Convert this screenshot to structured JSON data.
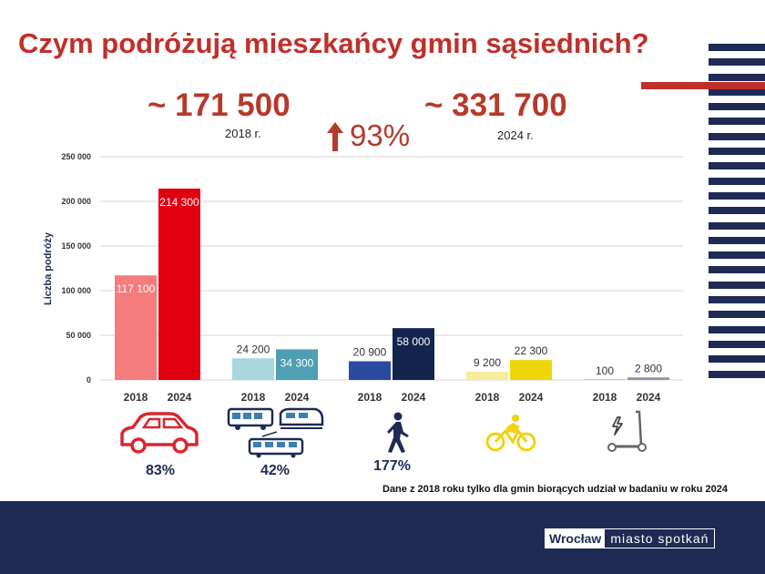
{
  "title": "Czym podróżują mieszkańcy gmin sąsiednich?",
  "totals": {
    "value_2018": "~ 171 500",
    "label_2018": "2018 r.",
    "value_2024": "~ 331 700",
    "label_2024": "2024 r.",
    "growth": "93%"
  },
  "chart_data": {
    "type": "bar",
    "ylabel": "Liczba podróży",
    "ylim": [
      0,
      250000
    ],
    "yticks": [
      "0",
      "50 000",
      "100 000",
      "150 000",
      "200 000",
      "250 000"
    ],
    "ytick_values": [
      0,
      50000,
      100000,
      150000,
      200000,
      250000
    ],
    "grid": true,
    "categories": [
      "2018",
      "2024"
    ],
    "groups": [
      {
        "values": [
          117100,
          214300
        ],
        "labels": [
          "117 100",
          "214 300"
        ],
        "colors": [
          "#f47c7c",
          "#e00010"
        ],
        "label_colors": [
          "#ffffff",
          "#ffffff"
        ]
      },
      {
        "values": [
          24200,
          34300
        ],
        "labels": [
          "24 200",
          "34 300"
        ],
        "colors": [
          "#a8d5de",
          "#4e9fb1"
        ],
        "label_colors": [
          "#ffffff",
          "#ffffff"
        ]
      },
      {
        "values": [
          20900,
          58000
        ],
        "labels": [
          "20 900",
          "58 000"
        ],
        "colors": [
          "#2b4aa2",
          "#13244f"
        ],
        "label_colors": [
          "#ffffff",
          "#ffffff"
        ]
      },
      {
        "values": [
          9200,
          22300
        ],
        "labels": [
          "9 200",
          "22 300"
        ],
        "colors": [
          "#f7ec9a",
          "#f0d50a"
        ],
        "label_colors": [
          "#333333",
          "#333333"
        ]
      },
      {
        "values": [
          100,
          2800
        ],
        "labels": [
          "100",
          "2 800"
        ],
        "colors": [
          "#cccccc",
          "#8c95a8"
        ],
        "label_colors": [
          "#333333",
          "#333333"
        ]
      }
    ]
  },
  "modes": [
    {
      "icon": "car-icon",
      "pct": "83%"
    },
    {
      "icon": "bus-tram-train-icon",
      "pct": "42%"
    },
    {
      "icon": "pedestrian-icon",
      "pct": "177%"
    },
    {
      "icon": "bicycle-icon",
      "pct": ""
    },
    {
      "icon": "e-scooter-icon",
      "pct": ""
    }
  ],
  "note": "Dane z 2018 roku tylko dla gmin biorących udział w badaniu w roku 2024",
  "logo": {
    "part1": "Wrocław",
    "part2": "miasto spotkań"
  },
  "colors": {
    "accent_red": "#c0302b",
    "navy": "#1f2a55"
  }
}
